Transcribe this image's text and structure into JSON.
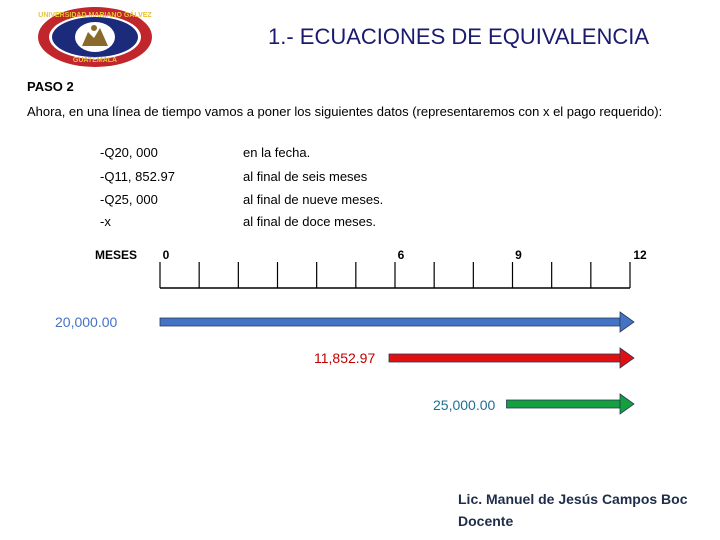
{
  "header": {
    "title": "1.- ECUACIONES DE EQUIVALENCIA",
    "logo": {
      "ring_text_top": "UNIVERSIDAD MARIANO GÁLVEZ",
      "ring_text_bottom": "GUATEMALA",
      "colors": {
        "ring": "#c0262c",
        "inner": "#1b2a7a",
        "gold": "#e8c23a"
      }
    }
  },
  "content": {
    "step_label": "PASO 2",
    "intro": "Ahora, en una línea de tiempo vamos a poner los siguientes datos (representaremos con x el pago requerido):",
    "data_rows": [
      {
        "amount": "-Q20, 000",
        "description": "en la fecha."
      },
      {
        "amount": "-Q11, 852.97",
        "description": "al final de seis meses"
      },
      {
        "amount": "-Q25, 000",
        "description": "al final de nueve meses."
      },
      {
        "amount": "-x",
        "description": "al final de doce meses."
      }
    ]
  },
  "timeline": {
    "axis_label": "MESES",
    "tick_labels": [
      {
        "month": 0,
        "label": "0"
      },
      {
        "month": 6,
        "label": "6"
      },
      {
        "month": 9,
        "label": "9"
      },
      {
        "month": 12,
        "label": "12"
      }
    ],
    "months_total": 12,
    "flows": [
      {
        "label": "20,000.00",
        "start_month": 0,
        "end_month": 12,
        "color": "#4472c4",
        "label_color": "#4472c4"
      },
      {
        "label": "11,852.97",
        "start_month": 6,
        "end_month": 12,
        "color": "#e01010",
        "label_color": "#c00000"
      },
      {
        "label": "25,000.00",
        "start_month": 9,
        "end_month": 12,
        "color": "#14a03c",
        "label_color": "#1f6f8f"
      }
    ]
  },
  "footer": {
    "author": "Lic. Manuel de Jesús Campos  Boc",
    "role": "Docente"
  }
}
